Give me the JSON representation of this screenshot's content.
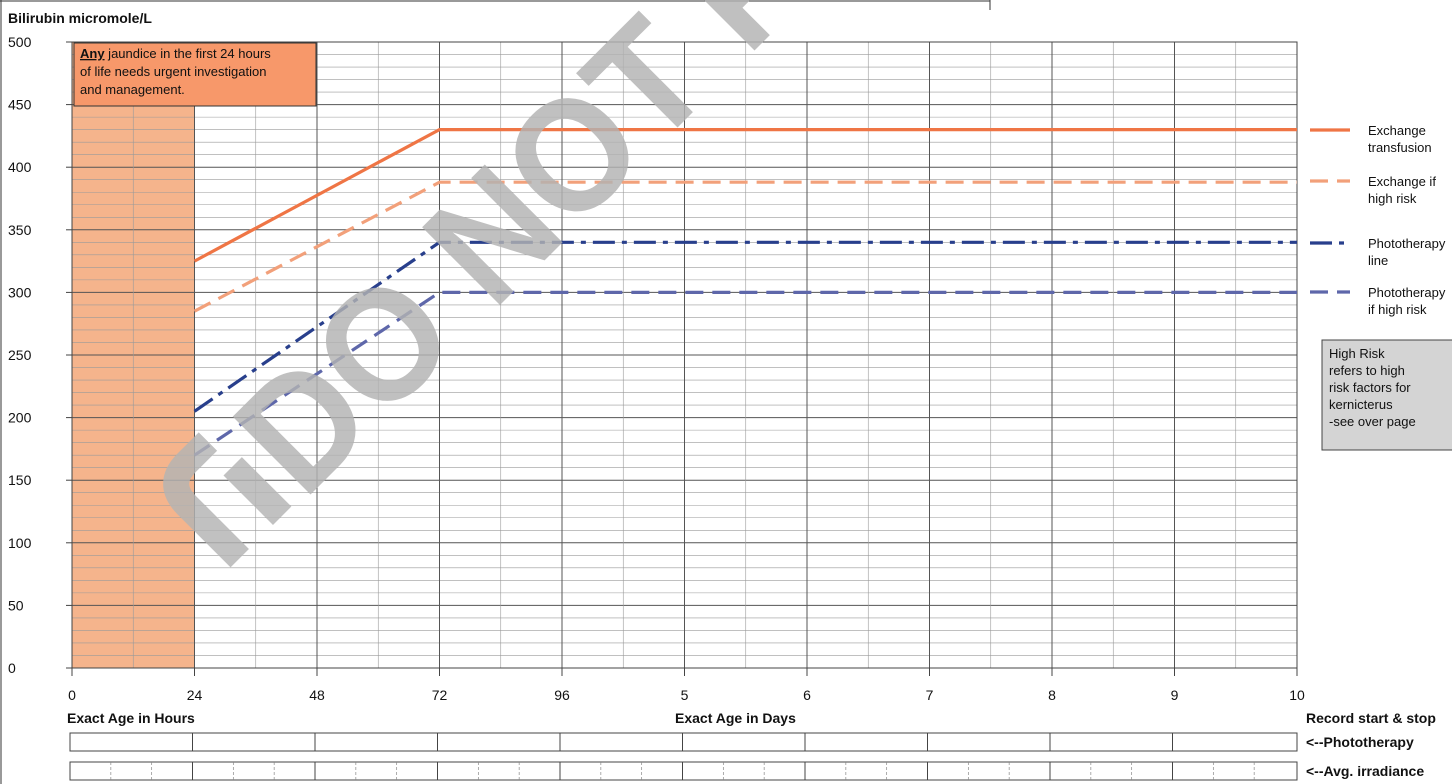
{
  "chart_data": {
    "type": "line",
    "ylabel": "Bilirubin micromole/L",
    "xlabel_hours": "Exact Age in Hours",
    "xlabel_days": "Exact Age in Days",
    "ylim": [
      0,
      500
    ],
    "y_ticks": [
      "0",
      "50",
      "100",
      "150",
      "200",
      "250",
      "300",
      "350",
      "400",
      "450",
      "500"
    ],
    "x_ticks": [
      {
        "hour": 0,
        "label": "0"
      },
      {
        "hour": 24,
        "label": "24"
      },
      {
        "hour": 48,
        "label": "48"
      },
      {
        "hour": 72,
        "label": "72"
      },
      {
        "hour": 96,
        "label": "96"
      },
      {
        "hour": 120,
        "label": "5"
      },
      {
        "hour": 144,
        "label": "6"
      },
      {
        "hour": 168,
        "label": "7"
      },
      {
        "hour": 192,
        "label": "8"
      },
      {
        "hour": 216,
        "label": "9"
      },
      {
        "hour": 240,
        "label": "10"
      }
    ],
    "xlim": [
      0,
      240
    ],
    "grid": true,
    "shaded_region": {
      "x": [
        0,
        24
      ],
      "color": "#f5b48c"
    },
    "series": [
      {
        "name": "Exchange transfusion",
        "style": "solid",
        "color": "#ef7545",
        "points": [
          [
            24,
            325
          ],
          [
            72,
            430
          ],
          [
            240,
            430
          ]
        ]
      },
      {
        "name": "Exchange if high risk",
        "style": "dashed",
        "color": "#f2a07a",
        "points": [
          [
            24,
            285
          ],
          [
            72,
            388
          ],
          [
            240,
            388
          ]
        ]
      },
      {
        "name": "Phototherapy line",
        "style": "dashdot",
        "color": "#283f8c",
        "points": [
          [
            24,
            205
          ],
          [
            72,
            340
          ],
          [
            240,
            340
          ]
        ]
      },
      {
        "name": "Phototherapy if high risk",
        "style": "dashed",
        "color": "#5e67aa",
        "points": [
          [
            24,
            170
          ],
          [
            72,
            300
          ],
          [
            240,
            300
          ]
        ]
      }
    ],
    "legend_position": "right"
  },
  "legend_labels": [
    [
      "Exchange",
      "transfusion"
    ],
    [
      "Exchange if",
      "high risk"
    ],
    [
      "Phototherapy",
      "line"
    ],
    [
      "Phototherapy",
      "if high risk"
    ]
  ],
  "urgent_note": {
    "emphasis": "Any",
    "lines": [
      " jaundice in the first 24 hours",
      "of life needs urgent investigation",
      "and management."
    ]
  },
  "high_risk_note": {
    "lines": [
      "High Risk",
      "refers to high",
      "risk factors for",
      "kernicterus",
      "-see over page"
    ]
  },
  "record_label": "Record start & stop",
  "row_labels": {
    "phototherapy": "<--Phototherapy",
    "irradiance": "<--Avg. irradiance"
  },
  "watermark": "DO NOT PRINT",
  "colors": {
    "shade": "#f5b48c",
    "note_box": "#f7986a",
    "grey_box": "#d4d4d4",
    "watermark": "#b3b3b3"
  }
}
